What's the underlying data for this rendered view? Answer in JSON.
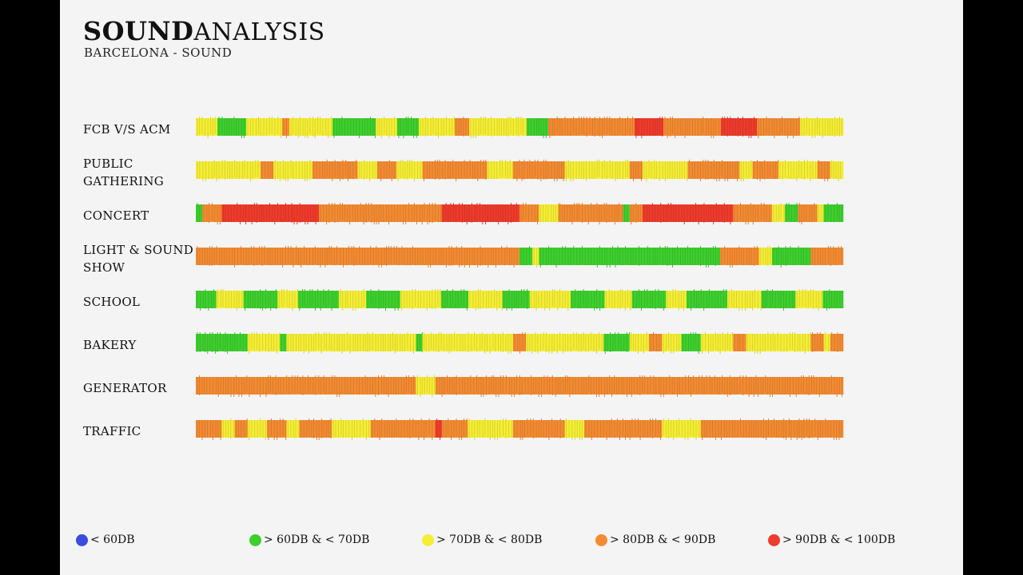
{
  "title_bold": "SOUND",
  "title_light": "ANALYSIS",
  "subtitle": "BARCELONA - SOUND",
  "colors": {
    "lt60": "#3a4be0",
    "60_70": "#3ecf2e",
    "70_80": "#f5ee34",
    "80_90": "#f38b32",
    "90_100": "#ee3b2c"
  },
  "chart_data": {
    "type": "heatmap",
    "title": "SOUND ANALYSIS",
    "subtitle": "BARCELONA - SOUND",
    "legend": [
      {
        "key": "lt60",
        "label": "< 60DB"
      },
      {
        "key": "60_70",
        "label": "> 60DB & < 70DB"
      },
      {
        "key": "70_80",
        "label": "> 70DB & < 80DB"
      },
      {
        "key": "80_90",
        "label": "> 80DB & < 90DB"
      },
      {
        "key": "90_100",
        "label": "> 90DB & < 100DB"
      }
    ],
    "legend_position": "bottom",
    "series": [
      {
        "name": "FCB V/S ACM",
        "segments": [
          [
            "70_80",
            0.03
          ],
          [
            "60_70",
            0.04
          ],
          [
            "70_80",
            0.05
          ],
          [
            "80_90",
            0.01
          ],
          [
            "70_80",
            0.06
          ],
          [
            "60_70",
            0.06
          ],
          [
            "70_80",
            0.03
          ],
          [
            "60_70",
            0.03
          ],
          [
            "70_80",
            0.05
          ],
          [
            "80_90",
            0.02
          ],
          [
            "70_80",
            0.08
          ],
          [
            "60_70",
            0.03
          ],
          [
            "80_90",
            0.12
          ],
          [
            "90_100",
            0.04
          ],
          [
            "80_90",
            0.08
          ],
          [
            "90_100",
            0.05
          ],
          [
            "80_90",
            0.06
          ],
          [
            "70_80",
            0.06
          ]
        ]
      },
      {
        "name": "PUBLIC\nGATHERING",
        "segments": [
          [
            "70_80",
            0.1
          ],
          [
            "80_90",
            0.02
          ],
          [
            "70_80",
            0.06
          ],
          [
            "80_90",
            0.07
          ],
          [
            "70_80",
            0.03
          ],
          [
            "80_90",
            0.03
          ],
          [
            "70_80",
            0.04
          ],
          [
            "80_90",
            0.1
          ],
          [
            "70_80",
            0.04
          ],
          [
            "80_90",
            0.08
          ],
          [
            "70_80",
            0.1
          ],
          [
            "80_90",
            0.02
          ],
          [
            "70_80",
            0.07
          ],
          [
            "80_90",
            0.08
          ],
          [
            "70_80",
            0.02
          ],
          [
            "80_90",
            0.04
          ],
          [
            "70_80",
            0.06
          ],
          [
            "80_90",
            0.02
          ],
          [
            "70_80",
            0.02
          ]
        ]
      },
      {
        "name": "CONCERT",
        "segments": [
          [
            "60_70",
            0.01
          ],
          [
            "80_90",
            0.03
          ],
          [
            "90_100",
            0.15
          ],
          [
            "80_90",
            0.19
          ],
          [
            "90_100",
            0.12
          ],
          [
            "80_90",
            0.03
          ],
          [
            "70_80",
            0.03
          ],
          [
            "80_90",
            0.1
          ],
          [
            "60_70",
            0.01
          ],
          [
            "80_90",
            0.02
          ],
          [
            "90_100",
            0.14
          ],
          [
            "80_90",
            0.06
          ],
          [
            "70_80",
            0.02
          ],
          [
            "60_70",
            0.02
          ],
          [
            "80_90",
            0.03
          ],
          [
            "70_80",
            0.01
          ],
          [
            "60_70",
            0.03
          ]
        ]
      },
      {
        "name": "LIGHT & SOUND\nSHOW",
        "segments": [
          [
            "80_90",
            0.5
          ],
          [
            "60_70",
            0.02
          ],
          [
            "70_80",
            0.01
          ],
          [
            "60_70",
            0.28
          ],
          [
            "80_90",
            0.06
          ],
          [
            "70_80",
            0.02
          ],
          [
            "60_70",
            0.06
          ],
          [
            "80_90",
            0.05
          ]
        ]
      },
      {
        "name": "SCHOOL",
        "segments": [
          [
            "60_70",
            0.03
          ],
          [
            "70_80",
            0.04
          ],
          [
            "60_70",
            0.05
          ],
          [
            "70_80",
            0.03
          ],
          [
            "60_70",
            0.06
          ],
          [
            "70_80",
            0.04
          ],
          [
            "60_70",
            0.05
          ],
          [
            "70_80",
            0.06
          ],
          [
            "60_70",
            0.04
          ],
          [
            "70_80",
            0.05
          ],
          [
            "60_70",
            0.04
          ],
          [
            "70_80",
            0.06
          ],
          [
            "60_70",
            0.05
          ],
          [
            "70_80",
            0.04
          ],
          [
            "60_70",
            0.05
          ],
          [
            "70_80",
            0.03
          ],
          [
            "60_70",
            0.06
          ],
          [
            "70_80",
            0.05
          ],
          [
            "60_70",
            0.05
          ],
          [
            "70_80",
            0.04
          ],
          [
            "60_70",
            0.03
          ]
        ]
      },
      {
        "name": "BAKERY",
        "segments": [
          [
            "60_70",
            0.08
          ],
          [
            "70_80",
            0.05
          ],
          [
            "60_70",
            0.01
          ],
          [
            "70_80",
            0.2
          ],
          [
            "60_70",
            0.01
          ],
          [
            "70_80",
            0.14
          ],
          [
            "80_90",
            0.02
          ],
          [
            "70_80",
            0.12
          ],
          [
            "60_70",
            0.04
          ],
          [
            "70_80",
            0.03
          ],
          [
            "80_90",
            0.02
          ],
          [
            "70_80",
            0.03
          ],
          [
            "60_70",
            0.03
          ],
          [
            "70_80",
            0.05
          ],
          [
            "80_90",
            0.02
          ],
          [
            "70_80",
            0.1
          ],
          [
            "80_90",
            0.02
          ],
          [
            "70_80",
            0.01
          ],
          [
            "80_90",
            0.02
          ]
        ]
      },
      {
        "name": "GENERATOR",
        "segments": [
          [
            "80_90",
            0.34
          ],
          [
            "70_80",
            0.03
          ],
          [
            "80_90",
            0.63
          ]
        ]
      },
      {
        "name": "TRAFFIC",
        "segments": [
          [
            "80_90",
            0.04
          ],
          [
            "70_80",
            0.02
          ],
          [
            "80_90",
            0.02
          ],
          [
            "70_80",
            0.03
          ],
          [
            "80_90",
            0.03
          ],
          [
            "70_80",
            0.02
          ],
          [
            "80_90",
            0.05
          ],
          [
            "70_80",
            0.06
          ],
          [
            "80_90",
            0.1
          ],
          [
            "90_100",
            0.01
          ],
          [
            "80_90",
            0.04
          ],
          [
            "70_80",
            0.07
          ],
          [
            "80_90",
            0.08
          ],
          [
            "70_80",
            0.03
          ],
          [
            "80_90",
            0.12
          ],
          [
            "70_80",
            0.06
          ],
          [
            "80_90",
            0.22
          ]
        ]
      }
    ]
  }
}
